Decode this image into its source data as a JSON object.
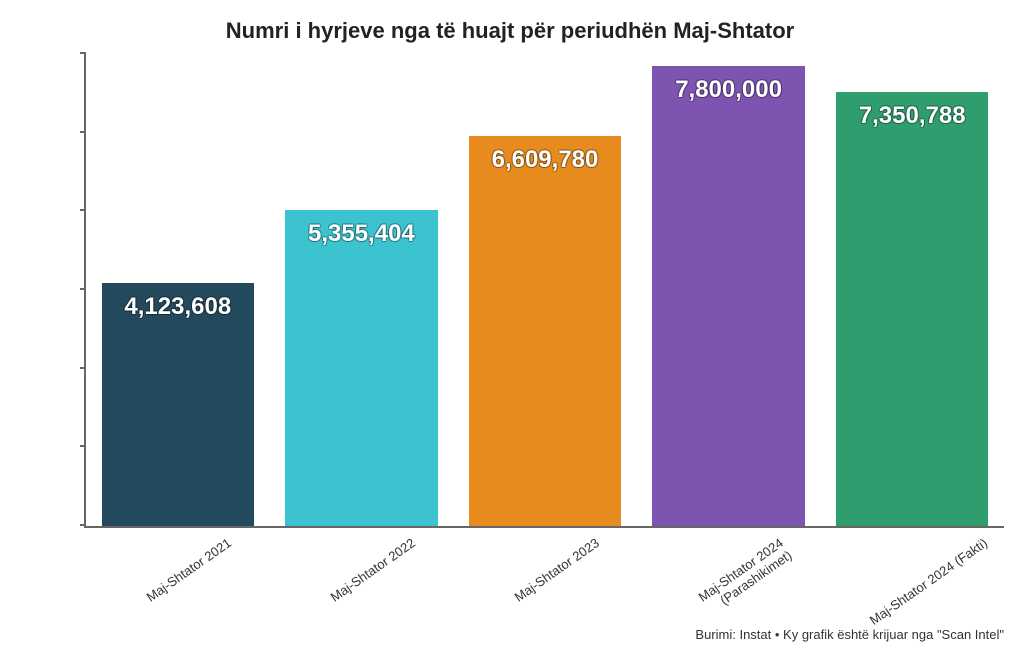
{
  "chart": {
    "type": "bar",
    "title": "Numri i hyrjeve nga të huajt për periudhën Maj-Shtator",
    "title_fontsize": 22,
    "title_color": "#222222",
    "background_color": "#ffffff",
    "axis_color": "#666666",
    "categories": [
      "Maj-Shtator 2021",
      "Maj-Shtator 2022",
      "Maj-Shtator 2023",
      "Maj-Shtator 2024\n(Parashikimet)",
      "Maj-Shtator 2024 (Fakti)"
    ],
    "values": [
      4123608,
      5355404,
      6609780,
      7800000,
      7350788
    ],
    "value_labels": [
      "4,123,608",
      "5,355,404",
      "6,609,780",
      "7,800,000",
      "7,350,788"
    ],
    "bar_colors": [
      "#234a5c",
      "#3bc3cf",
      "#e78b1f",
      "#7d54b0",
      "#2e9e6f"
    ],
    "bar_width": 0.83,
    "ylim": [
      0,
      8000000
    ],
    "value_label_color": "#ffffff",
    "value_label_fontsize": 24,
    "category_label_fontsize": 13,
    "category_label_rotation_deg": -35,
    "ytick_count": 6,
    "footer": "Burimi: Instat • Ky grafik është krijuar nga \"Scan Intel\"",
    "footer_fontsize": 13
  }
}
